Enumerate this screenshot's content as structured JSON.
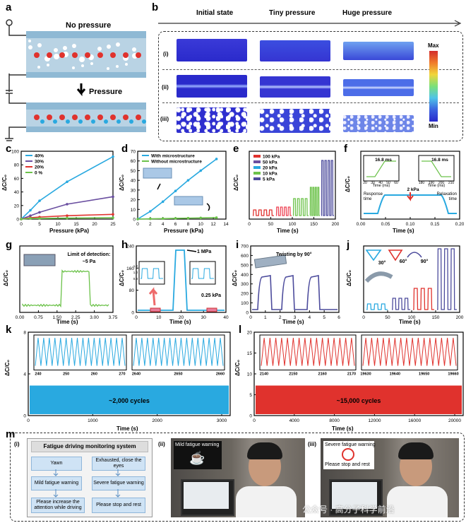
{
  "panels": {
    "a": {
      "label": "a",
      "no_pressure": "No pressure",
      "pressure": "Pressure"
    },
    "b": {
      "label": "b",
      "col1": "Initial state",
      "col2": "Tiny pressure",
      "col3": "Huge pressure",
      "rows": [
        "(i)",
        "(ii)",
        "(iii)"
      ],
      "cb_max": "Max",
      "cb_min": "Min"
    },
    "c": {
      "label": "c",
      "xlabel": "Pressure (kPa)",
      "ylabel": "ΔC/C₀",
      "chart_data": {
        "type": "line",
        "x": [
          0,
          2.5,
          5,
          12.5,
          25
        ],
        "series": [
          {
            "name": "40%",
            "color": "#29a9e0",
            "values": [
              0,
              13,
              27,
              55,
              92
            ]
          },
          {
            "name": "30%",
            "color": "#6a4fa0",
            "values": [
              0,
              5,
              10,
              22,
              33
            ]
          },
          {
            "name": "20%",
            "color": "#e0322d",
            "values": [
              0,
              2,
              3,
              5,
              7
            ]
          },
          {
            "name": "0 %",
            "color": "#6cc24a",
            "values": [
              0,
              1,
              1,
              1.5,
              2
            ]
          }
        ],
        "xticks": [
          "0",
          "5",
          "10",
          "15",
          "20",
          "25"
        ],
        "yticks": [
          "0",
          "20",
          "40",
          "60",
          "80",
          "100"
        ],
        "xlim": [
          0,
          25
        ],
        "ylim": [
          0,
          100
        ]
      }
    },
    "d": {
      "label": "d",
      "xlabel": "Pressure (kPa)",
      "ylabel": "ΔC/C₀",
      "chart_data": {
        "type": "line",
        "x": [
          0,
          2,
          4,
          6,
          8,
          10,
          12.5
        ],
        "series": [
          {
            "name": "With microstructure",
            "color": "#29a9e0",
            "values": [
              0,
              8,
              18,
              29,
              40,
              50,
              62
            ]
          },
          {
            "name": "Without microstructure",
            "color": "#6cc24a",
            "values": [
              0,
              0.3,
              0.5,
              0.8,
              1,
              1.2,
              1.5
            ]
          }
        ],
        "xticks": [
          "0",
          "2",
          "4",
          "6",
          "8",
          "10",
          "12",
          "14"
        ],
        "yticks": [
          "0",
          "10",
          "20",
          "30",
          "40",
          "50",
          "60",
          "70"
        ],
        "xlim": [
          0,
          14
        ],
        "ylim": [
          0,
          70
        ]
      }
    },
    "e": {
      "label": "e",
      "xlabel": "Time (s)",
      "ylabel": "ΔC/C₀",
      "legend": [
        "100 kPa",
        "50 kPa",
        "20 kPa",
        "10 kPa",
        "5 kPa"
      ],
      "xticks": [
        "0",
        "50",
        "100",
        "150",
        "200"
      ]
    },
    "f": {
      "label": "f",
      "xlabel": "Time (s)",
      "ylabel": "ΔC/C₀",
      "inset1": "16.8 ms",
      "inset2": "16.8 ms",
      "inset_xlabel": "Time (ms)",
      "mid": "2 kPa",
      "resp": "Response time",
      "relax": "Relaxation time",
      "xticks": [
        "0.00",
        "0.05",
        "0.10",
        "0.15",
        "0.20"
      ],
      "in1_ticks": [
        "20",
        "30",
        "40",
        "50",
        "60"
      ],
      "in2_ticks": [
        "180",
        "190",
        "200",
        "210"
      ]
    },
    "g": {
      "label": "g",
      "xlabel": "Time (s)",
      "ylabel": "ΔC/C₀",
      "note1": "Limit of detection:",
      "note2": "~5 Pa",
      "xticks": [
        "0.00",
        "0.75",
        "1.50",
        "2.25",
        "3.00",
        "3.75"
      ]
    },
    "h": {
      "label": "h",
      "xlabel": "Time (s)",
      "ylabel": "ΔC/C₀",
      "mpa": "1 MPa",
      "kpa": "0.25 kPa",
      "xticks": [
        "0",
        "10",
        "20",
        "30",
        "40"
      ],
      "yticks": [
        "0",
        "80",
        "160",
        "240"
      ],
      "in_ticks": [
        "1.2",
        "1.0",
        "0.8"
      ]
    },
    "i": {
      "label": "i",
      "xlabel": "Time (s)",
      "ylabel": "ΔC/C₀",
      "twist": "Twisting by 90°",
      "xticks": [
        "0",
        "1",
        "2",
        "3",
        "4",
        "5",
        "6"
      ],
      "yticks": [
        "0",
        "100",
        "200",
        "300",
        "400",
        "500",
        "600",
        "700"
      ]
    },
    "j": {
      "label": "j",
      "xlabel": "Time (s)",
      "ylabel": "ΔC/C₀",
      "a1": "30°",
      "a2": "60°",
      "a3": "90°",
      "xticks": [
        "0",
        "50",
        "100",
        "150",
        "200"
      ]
    },
    "k": {
      "label": "k",
      "xlabel": "Time (s)",
      "ylabel": "ΔC/C₀",
      "cycles": "~2,000 cycles",
      "xticks": [
        "0",
        "1000",
        "2000",
        "3000"
      ],
      "yticks": [
        "0",
        "4",
        "8"
      ],
      "in1_ticks": [
        "240",
        "250",
        "260",
        "270"
      ],
      "in2_ticks": [
        "2640",
        "2650",
        "2660"
      ]
    },
    "l": {
      "label": "l",
      "xlabel": "Time (s)",
      "ylabel": "ΔC/C₀",
      "cycles": "~15,000 cycles",
      "xticks": [
        "0",
        "4000",
        "8000",
        "12000",
        "16000",
        "20000"
      ],
      "yticks": [
        "0",
        "5",
        "10",
        "15",
        "20"
      ],
      "in1_ticks": [
        "2140",
        "2150",
        "2160",
        "2170"
      ],
      "in2_ticks": [
        "19630",
        "19640",
        "19650",
        "19660"
      ]
    },
    "m": {
      "label": "m",
      "sub1": "(i)",
      "sub2": "(ii)",
      "sub3": "(iii)",
      "title": "Fatigue driving monitoring system",
      "flow": [
        "Yawn",
        "Exhausted, close the eyes",
        "Mild fatigue warning",
        "Severe fatigue warning",
        "Please increase the attention while driving",
        "Please stop and rest"
      ],
      "photo1_caption": "Mild fatigue warning",
      "photo2_caption": "Severe fatigue warning",
      "photo2_sub": "Please stop and rest",
      "watermark": "公众号 · 高分子科学前沿"
    }
  },
  "colors": {
    "cyan": "#29a9e0",
    "purple": "#6a4fa0",
    "red": "#e0322d",
    "green": "#6cc24a",
    "darkpurple": "#4c4b9c"
  }
}
